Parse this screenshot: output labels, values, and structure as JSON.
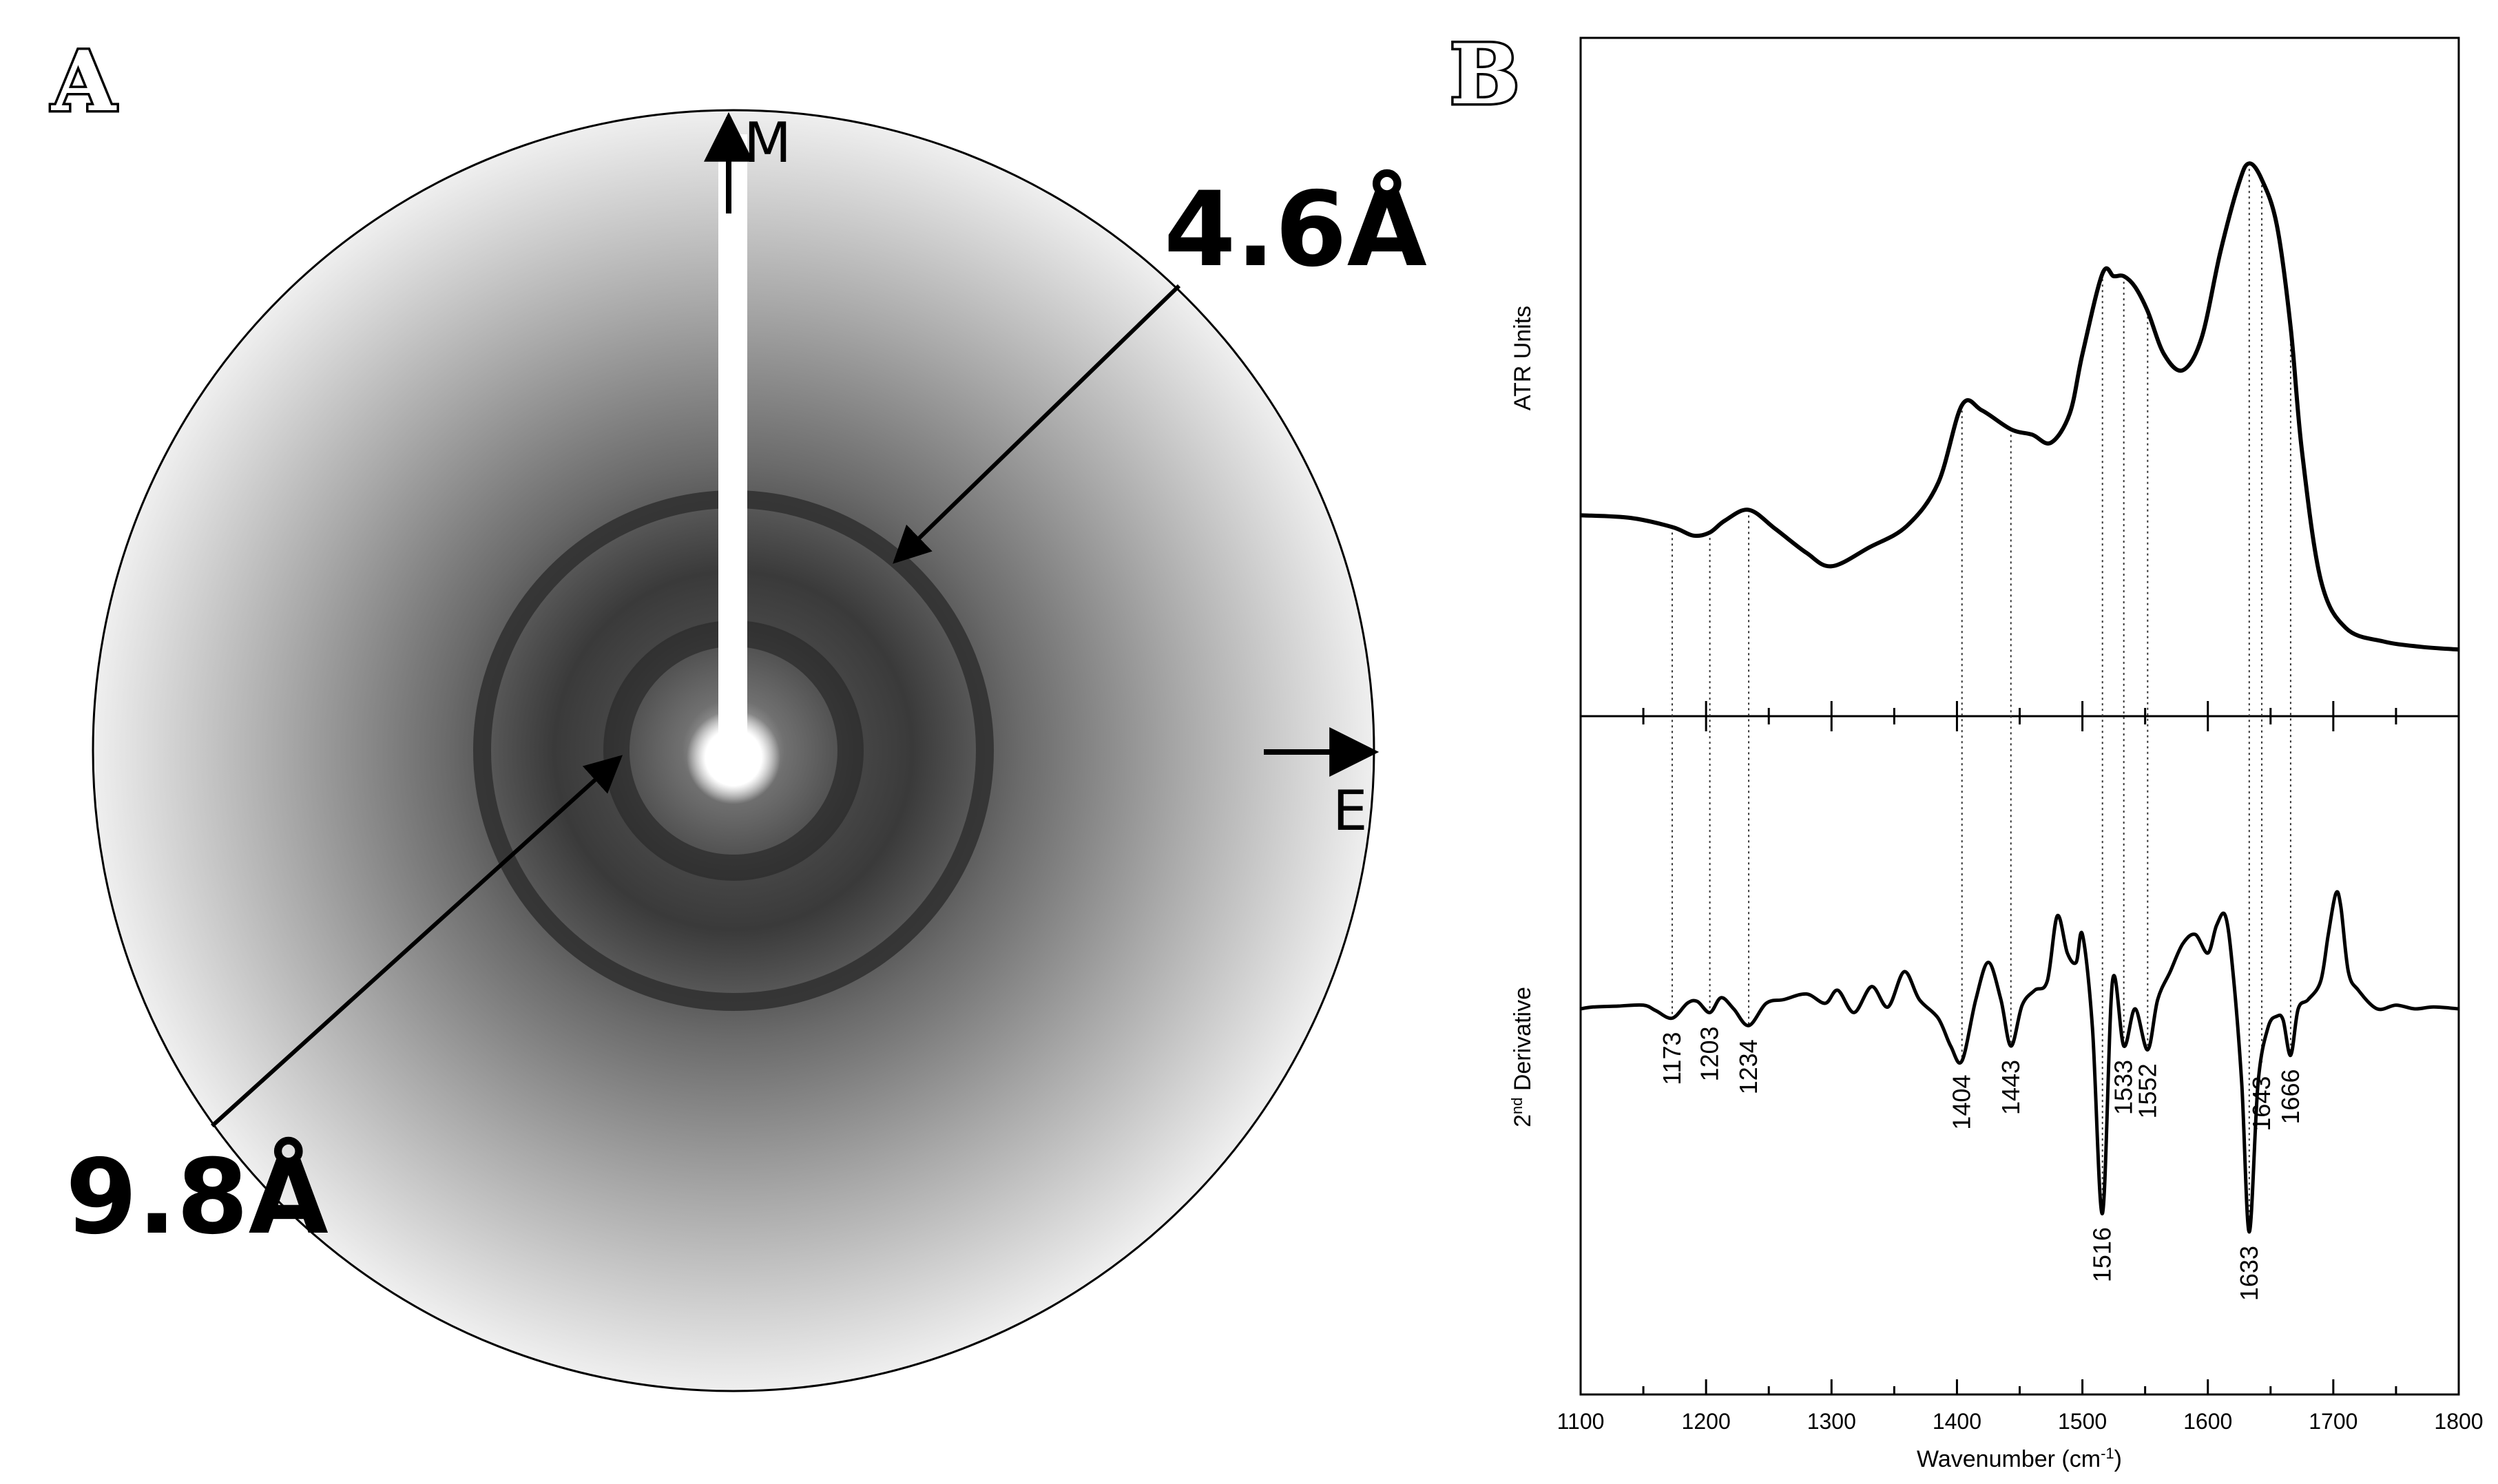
{
  "panels": {
    "a": {
      "letter": "A",
      "ring_labels": [
        "4.6Å",
        "9.8Å"
      ],
      "axis_labels": {
        "meridian": "M",
        "equator": "E"
      }
    },
    "b": {
      "letter": "B",
      "upper_ylabel": "ATR Units",
      "lower_ylabel_main": "2",
      "lower_ylabel_sup": "nd",
      "lower_ylabel_rest": " Derivative",
      "xlabel_main": "Wavenumber (cm",
      "xlabel_sup": "-1",
      "xlabel_end": ")"
    }
  },
  "chart_data": {
    "type": "line",
    "xlabel": "Wavenumber (cm-1)",
    "xlim": [
      1100,
      1800
    ],
    "xticks": [
      1100,
      1200,
      1300,
      1400,
      1500,
      1600,
      1700,
      1800
    ],
    "series": [
      {
        "name": "ATR Units",
        "x": [
          1100,
          1140,
          1173,
          1190,
          1203,
          1215,
          1234,
          1255,
          1280,
          1300,
          1330,
          1360,
          1385,
          1404,
          1420,
          1443,
          1460,
          1475,
          1490,
          1500,
          1516,
          1525,
          1533,
          1542,
          1552,
          1565,
          1580,
          1595,
          1610,
          1625,
          1633,
          1643,
          1655,
          1666,
          1675,
          1690,
          1710,
          1740,
          1770,
          1800
        ],
        "values": [
          0.31,
          0.305,
          0.288,
          0.272,
          0.278,
          0.3,
          0.32,
          0.285,
          0.24,
          0.215,
          0.25,
          0.29,
          0.37,
          0.515,
          0.505,
          0.47,
          0.46,
          0.445,
          0.5,
          0.61,
          0.76,
          0.755,
          0.755,
          0.735,
          0.69,
          0.61,
          0.58,
          0.64,
          0.8,
          0.93,
          0.965,
          0.935,
          0.85,
          0.66,
          0.43,
          0.19,
          0.1,
          0.075,
          0.065,
          0.06
        ]
      },
      {
        "name": "2nd Derivative",
        "x": [
          1100,
          1110,
          1130,
          1150,
          1160,
          1173,
          1185,
          1193,
          1203,
          1212,
          1222,
          1234,
          1248,
          1262,
          1280,
          1295,
          1305,
          1318,
          1332,
          1345,
          1358,
          1370,
          1385,
          1395,
          1404,
          1415,
          1425,
          1435,
          1443,
          1452,
          1462,
          1472,
          1480,
          1488,
          1495,
          1500,
          1508,
          1516,
          1524,
          1533,
          1542,
          1552,
          1560,
          1570,
          1580,
          1590,
          1600,
          1607,
          1614,
          1620,
          1627,
          1633,
          1640,
          1648,
          1655,
          1660,
          1666,
          1672,
          1680,
          1690,
          1696,
          1702,
          1706,
          1712,
          1720,
          1735,
          1750,
          1765,
          1780,
          1800
        ],
        "values": [
          0.0,
          0.01,
          0.015,
          0.02,
          -0.01,
          -0.05,
          0.03,
          0.04,
          -0.02,
          0.06,
          0.0,
          -0.09,
          0.03,
          0.05,
          0.08,
          0.03,
          0.1,
          -0.02,
          0.12,
          0.01,
          0.2,
          0.05,
          -0.05,
          -0.2,
          -0.28,
          0.05,
          0.25,
          0.05,
          -0.2,
          0.02,
          0.1,
          0.15,
          0.5,
          0.3,
          0.25,
          0.4,
          -0.1,
          -1.1,
          0.15,
          -0.2,
          0.0,
          -0.22,
          0.05,
          0.2,
          0.35,
          0.4,
          0.3,
          0.45,
          0.5,
          0.2,
          -0.4,
          -1.2,
          -0.4,
          -0.1,
          -0.04,
          -0.06,
          -0.25,
          0.0,
          0.05,
          0.15,
          0.4,
          0.62,
          0.55,
          0.2,
          0.1,
          0.0,
          0.02,
          0.0,
          0.01,
          0.0
        ]
      }
    ],
    "peak_labels": [
      1173,
      1203,
      1234,
      1404,
      1443,
      1516,
      1533,
      1552,
      1633,
      1643,
      1666
    ]
  }
}
